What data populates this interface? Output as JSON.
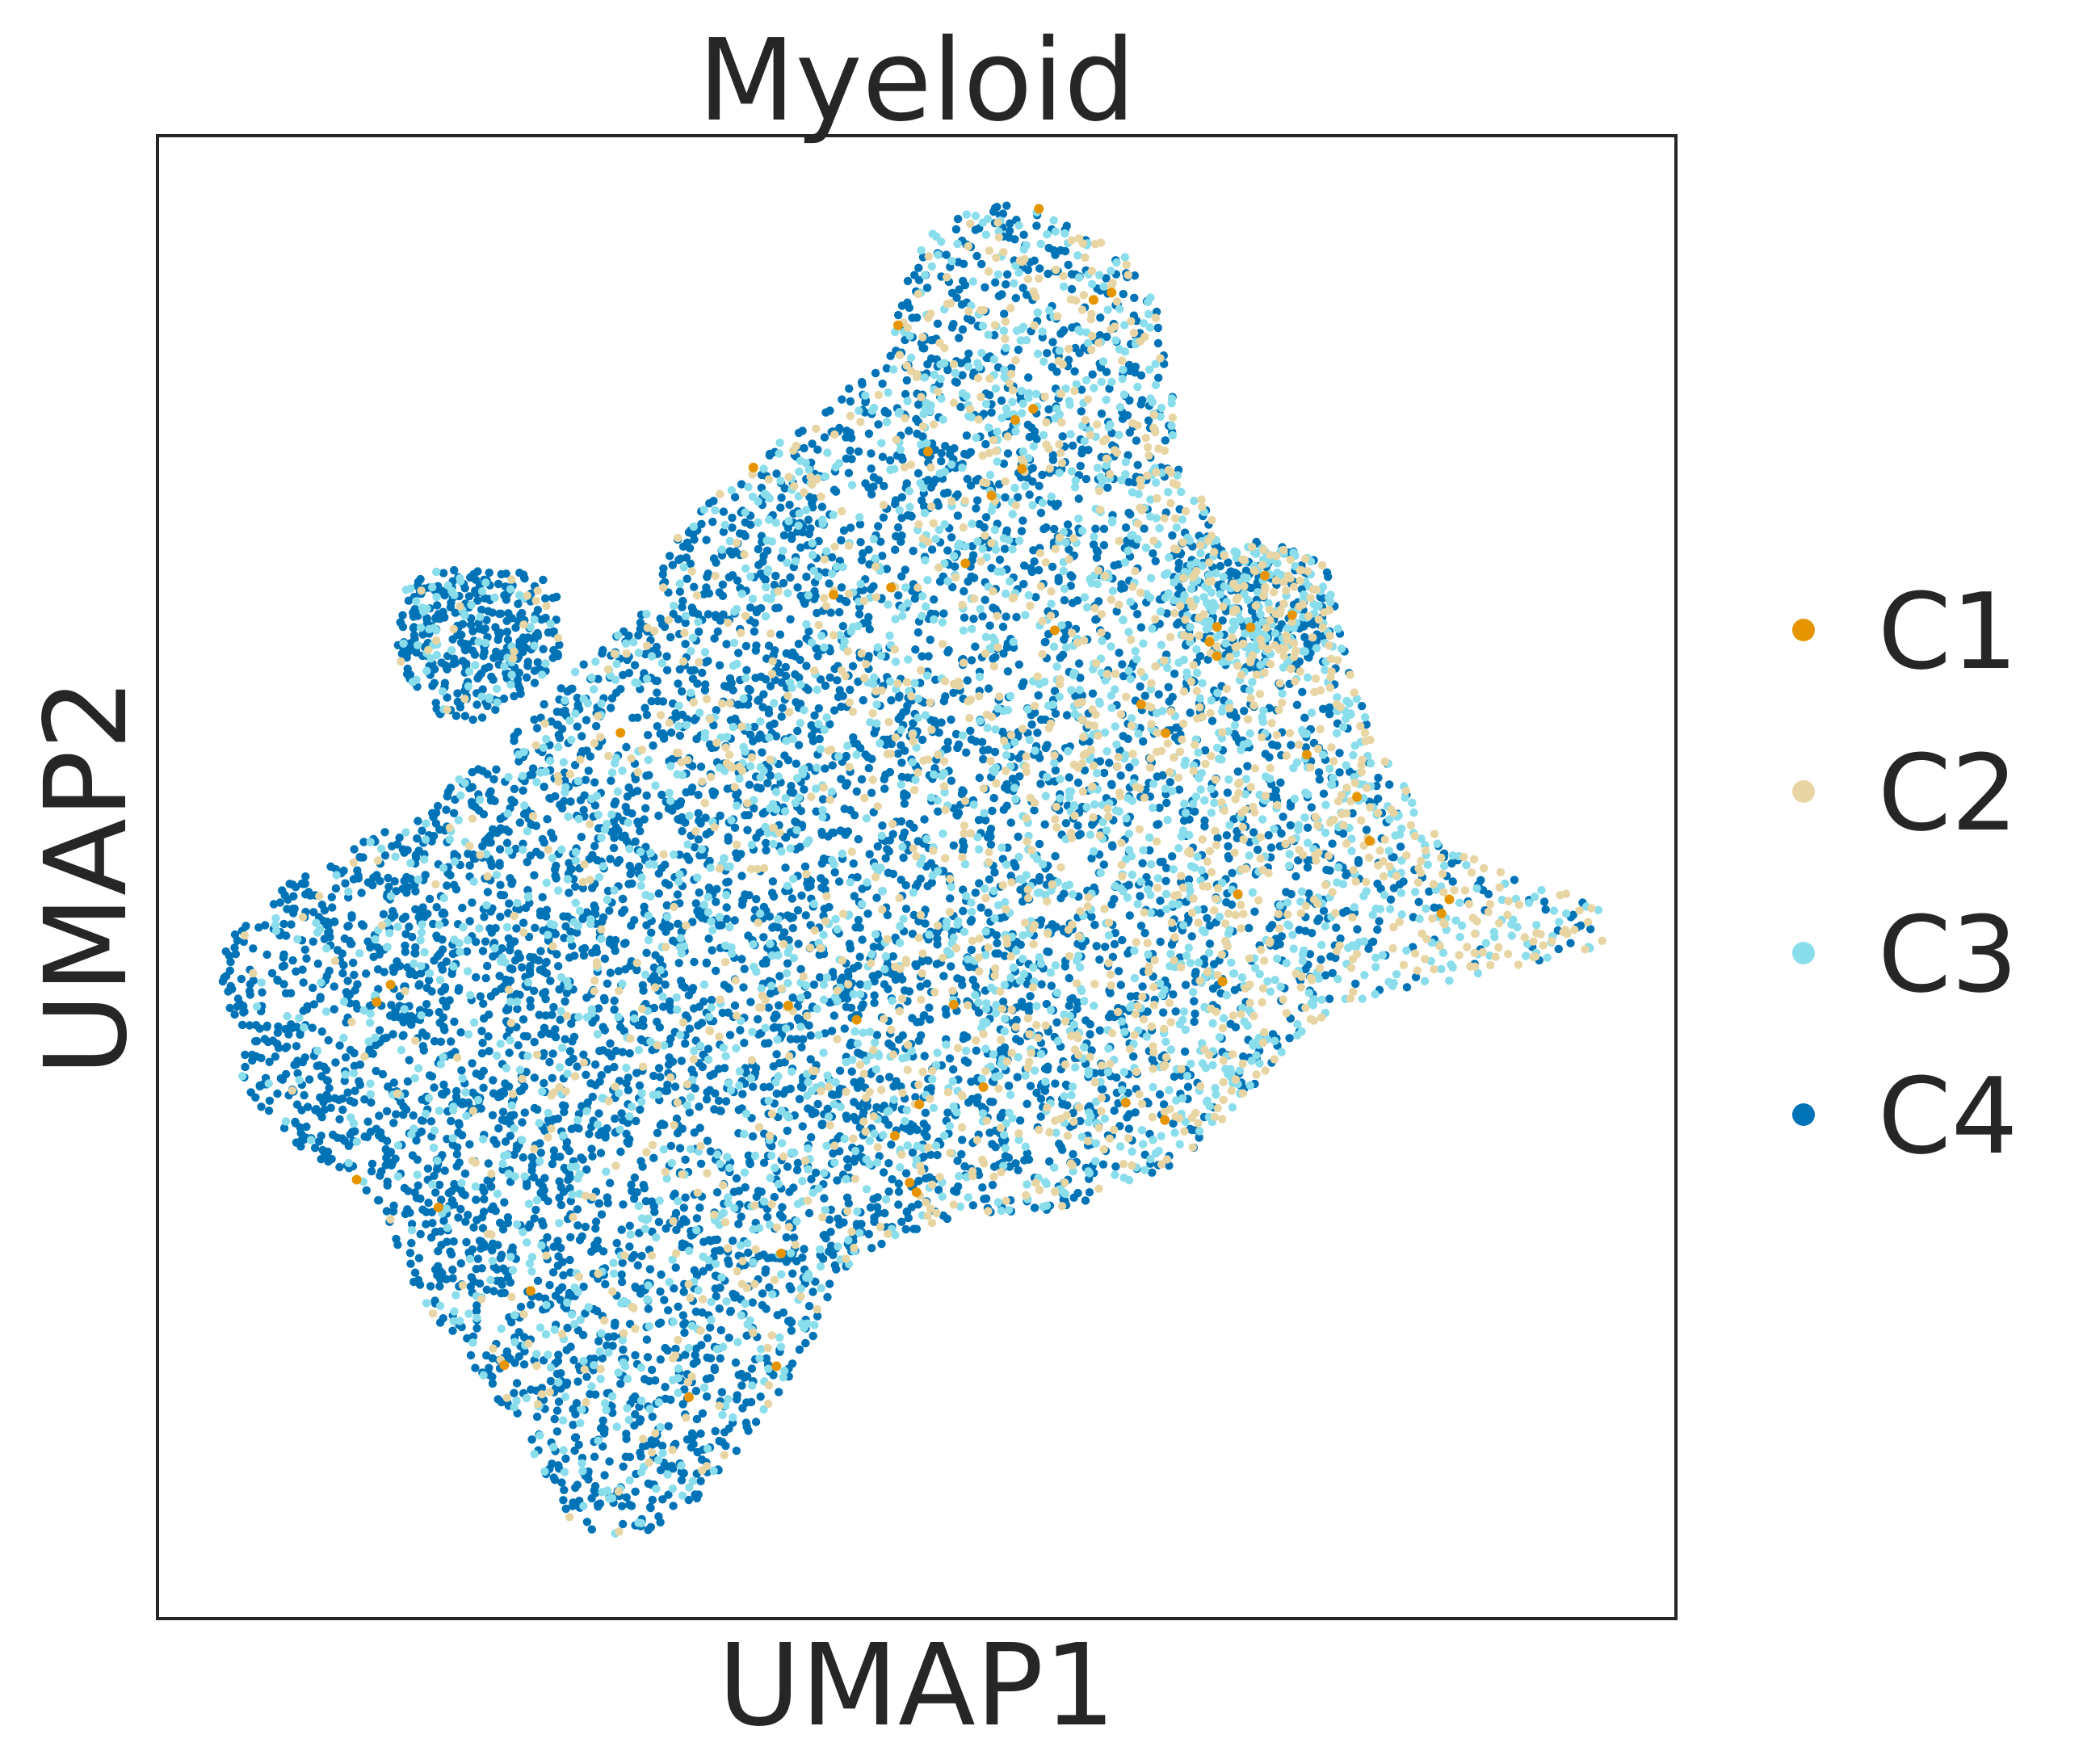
{
  "chart_data": {
    "type": "scatter",
    "title": "Myeloid",
    "xlabel": "UMAP1",
    "ylabel": "UMAP2",
    "xticks": [],
    "yticks": [],
    "grid": false,
    "legend_placement": "right",
    "series": [
      {
        "name": "C1",
        "color": "#E69500"
      },
      {
        "name": "C2",
        "color": "#E8D5A4"
      },
      {
        "name": "C3",
        "color": "#8ADDEB"
      },
      {
        "name": "C4",
        "color": "#0073B7"
      }
    ]
  }
}
